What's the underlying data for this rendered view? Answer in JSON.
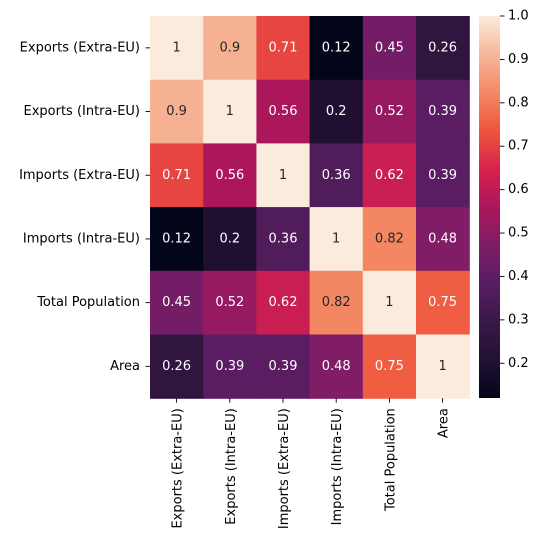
{
  "chart_data": {
    "type": "heatmap",
    "title": "",
    "xlabel": "",
    "ylabel": "",
    "rows": [
      "Exports (Extra-EU)",
      "Exports (Intra-EU)",
      "Imports (Extra-EU)",
      "Imports (Intra-EU)",
      "Total Population",
      "Area"
    ],
    "columns": [
      "Exports (Extra-EU)",
      "Exports (Intra-EU)",
      "Imports (Extra-EU)",
      "Imports (Intra-EU)",
      "Total Population",
      "Area"
    ],
    "values": [
      [
        1,
        0.9,
        0.71,
        0.12,
        0.45,
        0.26
      ],
      [
        0.9,
        1,
        0.56,
        0.2,
        0.52,
        0.39
      ],
      [
        0.71,
        0.56,
        1,
        0.36,
        0.62,
        0.39
      ],
      [
        0.12,
        0.2,
        0.36,
        1,
        0.82,
        0.48
      ],
      [
        0.45,
        0.52,
        0.62,
        0.82,
        1,
        0.75
      ],
      [
        0.26,
        0.39,
        0.39,
        0.48,
        0.75,
        1
      ]
    ],
    "labels": [
      [
        "1",
        "0.9",
        "0.71",
        "0.12",
        "0.45",
        "0.26"
      ],
      [
        "0.9",
        "1",
        "0.56",
        "0.2",
        "0.52",
        "0.39"
      ],
      [
        "0.71",
        "0.56",
        "1",
        "0.36",
        "0.62",
        "0.39"
      ],
      [
        "0.12",
        "0.2",
        "0.36",
        "1",
        "0.82",
        "0.48"
      ],
      [
        "0.45",
        "0.52",
        "0.62",
        "0.82",
        "1",
        "0.75"
      ],
      [
        "0.26",
        "0.39",
        "0.39",
        "0.48",
        "0.75",
        "1"
      ]
    ],
    "colormap": "rocket",
    "colorbar": {
      "range": [
        0.12,
        1.0
      ],
      "ticks": [
        0.2,
        0.3,
        0.4,
        0.5,
        0.6,
        0.7,
        0.8,
        0.9,
        1.0
      ],
      "tick_labels": [
        "0.2",
        "0.3",
        "0.4",
        "0.5",
        "0.6",
        "0.7",
        "0.8",
        "0.9",
        "1.0"
      ]
    }
  }
}
